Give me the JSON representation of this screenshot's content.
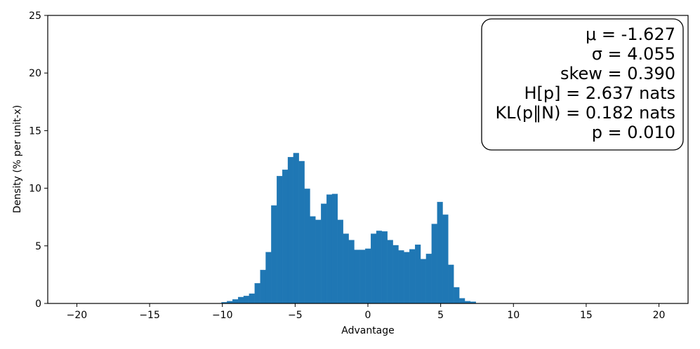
{
  "chart_data": {
    "type": "bar",
    "subtype": "histogram",
    "xlabel": "Advantage",
    "ylabel": "Density (% per unit-x)",
    "xlim": [
      -22,
      22
    ],
    "ylim": [
      0,
      25
    ],
    "xticks": [
      -20,
      -15,
      -10,
      -5,
      0,
      5,
      10,
      15,
      20
    ],
    "xtick_labels": [
      "−20",
      "−15",
      "−10",
      "−5",
      "0",
      "5",
      "10",
      "15",
      "20"
    ],
    "yticks": [
      0,
      5,
      10,
      15,
      20,
      25
    ],
    "ytick_labels": [
      "0",
      "5",
      "10",
      "15",
      "20",
      "25"
    ],
    "grid": false,
    "bar_color": "#1f77b4",
    "bin_width": 0.38,
    "bin_start": -10.06,
    "values": [
      0.1,
      0.2,
      0.35,
      0.55,
      0.65,
      0.85,
      1.75,
      2.9,
      4.45,
      8.5,
      11.05,
      11.6,
      12.7,
      13.05,
      12.35,
      9.95,
      7.55,
      7.25,
      8.65,
      9.45,
      9.5,
      7.25,
      6.05,
      5.5,
      4.65,
      4.65,
      4.75,
      6.05,
      6.3,
      6.25,
      5.5,
      5.05,
      4.6,
      4.45,
      4.7,
      5.1,
      3.85,
      4.3,
      6.9,
      8.8,
      7.7,
      3.35,
      1.4,
      0.45,
      0.2,
      0.15
    ],
    "stats_box": {
      "lines": [
        "μ = -1.627",
        "σ = 4.055",
        "skew = 0.390",
        "H[p] = 2.637 nats",
        "KL(p‖N) = 0.182 nats",
        "p = 0.010"
      ],
      "placement": "top-right"
    }
  }
}
